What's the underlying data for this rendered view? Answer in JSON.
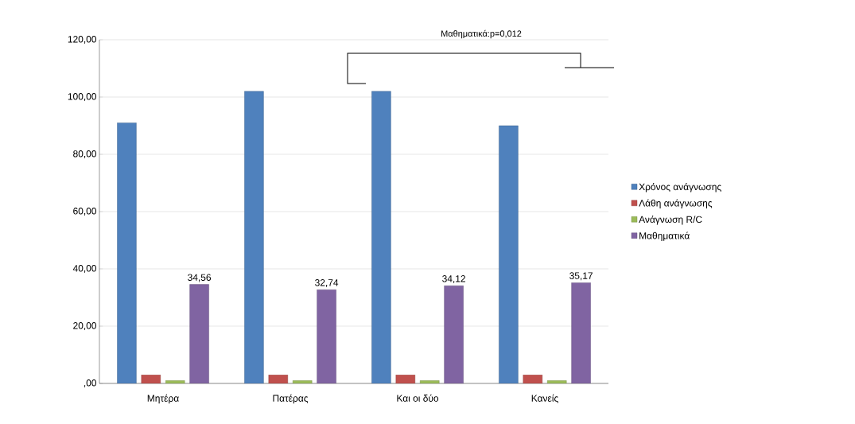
{
  "chart_data": {
    "type": "bar",
    "categories": [
      "Μητέρα",
      "Πατέρας",
      "Και οι δύο",
      "Κανείς"
    ],
    "series": [
      {
        "name": "Χρόνος ανάγνωσης",
        "color": "#4f81bd",
        "values": [
          91,
          102,
          102,
          90
        ]
      },
      {
        "name": "Λάθη ανάγνωσης",
        "color": "#c0504d",
        "values": [
          3,
          3,
          3,
          3
        ]
      },
      {
        "name": "Ανάγνωση R/C",
        "color": "#9bbb59",
        "values": [
          1,
          1,
          1,
          1
        ]
      },
      {
        "name": "Μαθηματικά",
        "color": "#8064a2",
        "values": [
          34.56,
          32.74,
          34.12,
          35.17
        ],
        "value_labels": [
          "34,56",
          "32,74",
          "34,12",
          "35,17"
        ]
      }
    ],
    "ylim": [
      0,
      120
    ],
    "yticks": [
      {
        "value": 0,
        "label": ",00"
      },
      {
        "value": 20,
        "label": "20,00"
      },
      {
        "value": 40,
        "label": "40,00"
      },
      {
        "value": 60,
        "label": "60,00"
      },
      {
        "value": 80,
        "label": "80,00"
      },
      {
        "value": 100,
        "label": "100,00"
      },
      {
        "value": 120,
        "label": "120,00"
      }
    ],
    "grid": "y",
    "legend": "right",
    "annotations": [
      "Μαθηματικά:p=0,012"
    ]
  }
}
